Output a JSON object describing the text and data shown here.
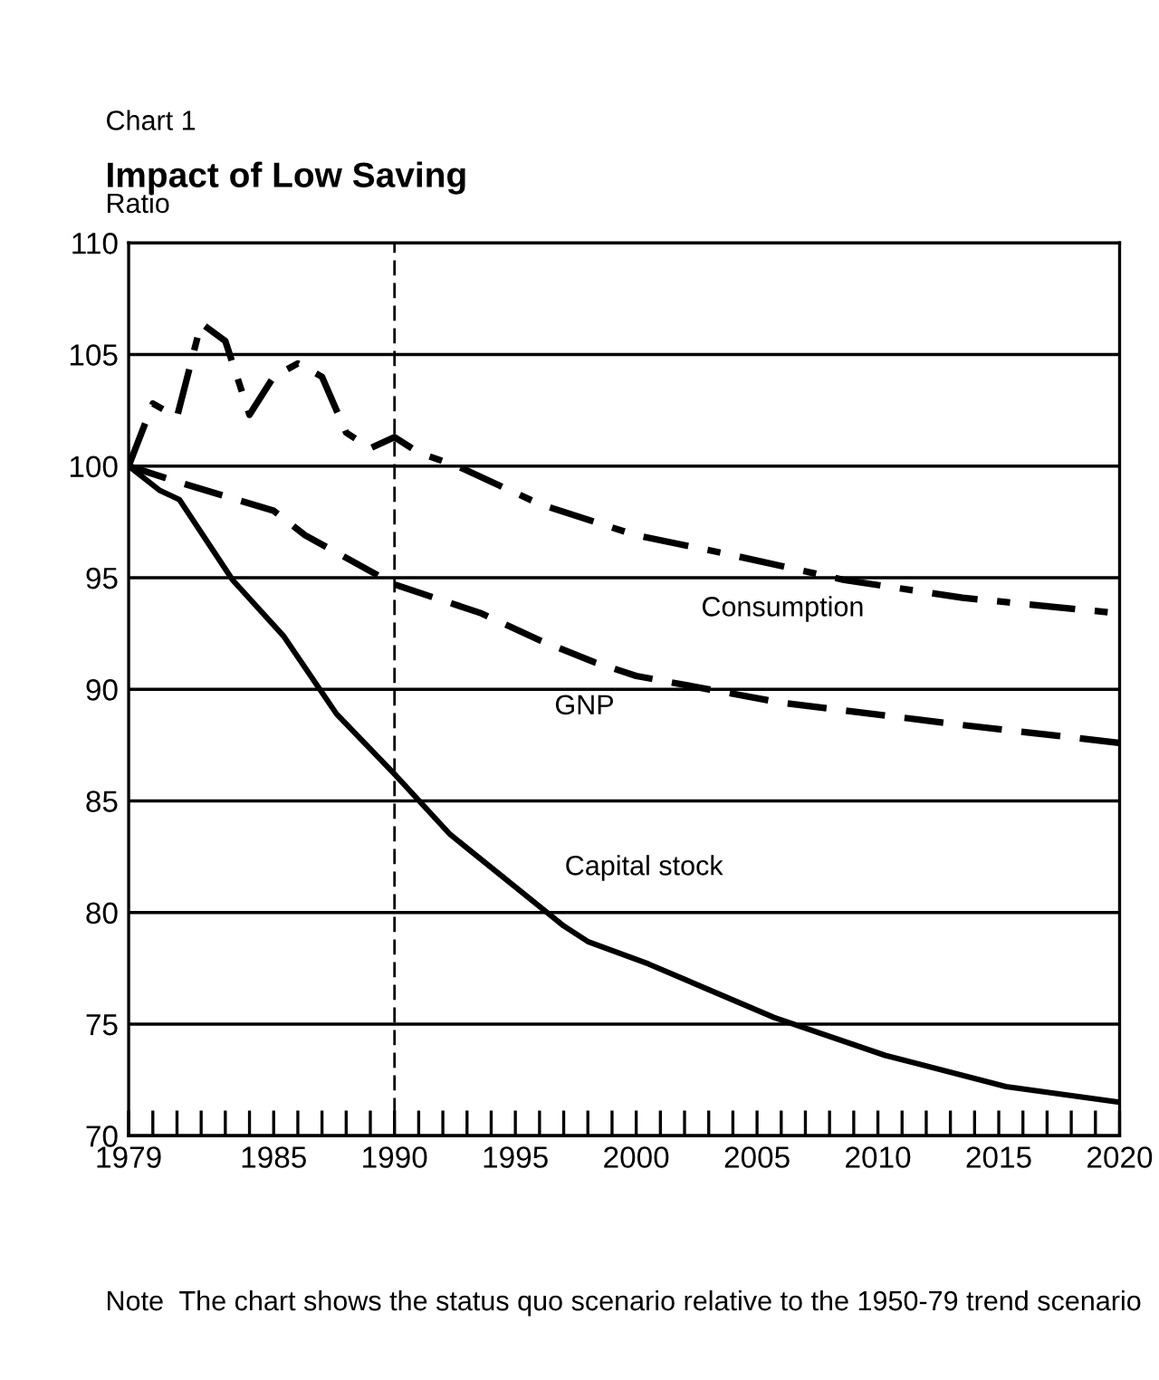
{
  "chart_data": {
    "type": "line",
    "title": "Impact of Low Saving",
    "subtitle": "Chart 1",
    "ylabel": "Ratio",
    "annotations": [
      "Note  The chart shows the status quo scenario relative to the 1950-79 trend scenario"
    ],
    "series": [
      {
        "name": "Consumption",
        "color": "#000000",
        "line_style": "dashdot",
        "x": [
          1979,
          1980,
          1981,
          1982,
          1983,
          1984,
          1985,
          1986,
          1987,
          1988,
          1989,
          1990,
          1991,
          1992.6,
          1996,
          2000,
          2003.6,
          2008.6,
          2013.5,
          2020
        ],
        "values": [
          100,
          102.8,
          102.2,
          106.4,
          105.6,
          102.3,
          104.0,
          104.6,
          104.0,
          101.5,
          100.8,
          101.3,
          100.6,
          100.0,
          98.3,
          96.9,
          96.1,
          94.9,
          94.1,
          93.4
        ]
      },
      {
        "name": "GNP",
        "color": "#000000",
        "line_style": "dashed",
        "x": [
          1979,
          1981,
          1985,
          1986.3,
          1990,
          1993.6,
          1996,
          1998.3,
          2000,
          2006,
          2013.5,
          2020
        ],
        "values": [
          100,
          99.3,
          98.0,
          96.9,
          94.7,
          93.4,
          92.2,
          91.2,
          90.6,
          89.4,
          88.4,
          87.6
        ]
      },
      {
        "name": "Capital stock",
        "color": "#000000",
        "line_style": "solid",
        "x": [
          1979,
          1980.3,
          1981.1,
          1983.3,
          1985.4,
          1987.6,
          1990,
          1992.3,
          1997,
          1998,
          2000.5,
          2005.7,
          2010.3,
          2015.3,
          2020
        ],
        "values": [
          100,
          98.9,
          98.5,
          94.9,
          92.4,
          88.9,
          86.2,
          83.5,
          79.4,
          78.7,
          77.7,
          75.3,
          73.6,
          72.2,
          71.5
        ]
      }
    ],
    "xlim": [
      1979,
      2020
    ],
    "ylim": [
      70,
      110
    ],
    "xticks": [
      1979,
      {
        "value": 1980,
        "label": null
      },
      {
        "value": 1981,
        "label": null
      },
      {
        "value": 1982,
        "label": null
      },
      {
        "value": 1983,
        "label": null
      },
      {
        "value": 1984,
        "label": null
      },
      1985,
      {
        "value": 1986,
        "label": null
      },
      {
        "value": 1987,
        "label": null
      },
      {
        "value": 1988,
        "label": null
      },
      {
        "value": 1989,
        "label": null
      },
      1990,
      {
        "value": 1991,
        "label": null
      },
      {
        "value": 1992,
        "label": null
      },
      {
        "value": 1993,
        "label": null
      },
      {
        "value": 1994,
        "label": null
      },
      1995,
      {
        "value": 1996,
        "label": null
      },
      {
        "value": 1997,
        "label": null
      },
      {
        "value": 1998,
        "label": null
      },
      {
        "value": 1999,
        "label": null
      },
      2000,
      {
        "value": 2001,
        "label": null
      },
      {
        "value": 2002,
        "label": null
      },
      {
        "value": 2003,
        "label": null
      },
      {
        "value": 2004,
        "label": null
      },
      2005,
      {
        "value": 2006,
        "label": null
      },
      {
        "value": 2007,
        "label": null
      },
      {
        "value": 2008,
        "label": null
      },
      {
        "value": 2009,
        "label": null
      },
      2010,
      {
        "value": 2011,
        "label": null
      },
      {
        "value": 2012,
        "label": null
      },
      {
        "value": 2013,
        "label": null
      },
      {
        "value": 2014,
        "label": null
      },
      2015,
      {
        "value": 2016,
        "label": null
      },
      {
        "value": 2017,
        "label": null
      },
      {
        "value": 2018,
        "label": null
      },
      {
        "value": 2019,
        "label": null
      },
      2020
    ],
    "yticks": [
      70,
      75,
      80,
      85,
      90,
      95,
      100,
      105,
      110
    ],
    "ref_lines": [
      {
        "axis": "x",
        "value": 1990,
        "label": null,
        "color": "#000000",
        "line_style": "dashed"
      }
    ],
    "grid": "y",
    "legend": false,
    "marker": "none"
  }
}
